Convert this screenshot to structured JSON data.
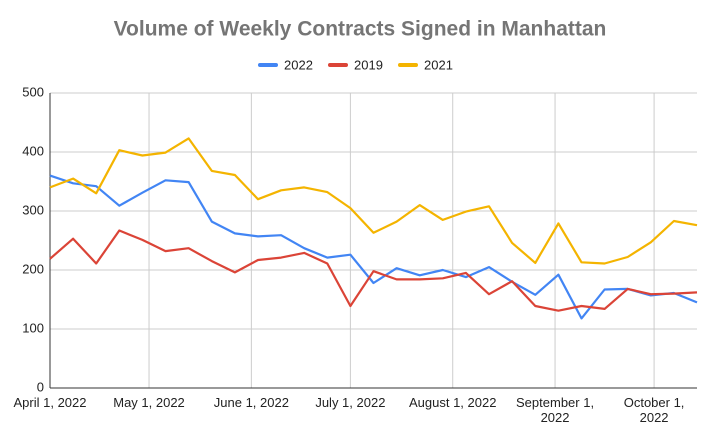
{
  "chart_data": {
    "type": "line",
    "title": "Volume of Weekly Contracts Signed in Manhattan",
    "x": [
      "2022-04-01",
      "2022-04-08",
      "2022-04-15",
      "2022-04-22",
      "2022-04-29",
      "2022-05-06",
      "2022-05-13",
      "2022-05-20",
      "2022-05-27",
      "2022-06-03",
      "2022-06-10",
      "2022-06-17",
      "2022-06-24",
      "2022-07-01",
      "2022-07-08",
      "2022-07-15",
      "2022-07-22",
      "2022-07-29",
      "2022-08-05",
      "2022-08-12",
      "2022-08-19",
      "2022-08-26",
      "2022-09-02",
      "2022-09-09",
      "2022-09-16",
      "2022-09-23",
      "2022-09-30",
      "2022-10-07",
      "2022-10-14"
    ],
    "series": [
      {
        "name": "2022",
        "color": "#4285f4",
        "values": [
          360,
          347,
          342,
          309,
          331,
          352,
          349,
          282,
          262,
          257,
          259,
          237,
          221,
          226,
          178,
          203,
          191,
          200,
          188,
          205,
          180,
          158,
          192,
          118,
          167,
          168,
          157,
          161,
          145
        ]
      },
      {
        "name": "2019",
        "color": "#db4437",
        "values": [
          219,
          253,
          211,
          267,
          251,
          232,
          237,
          215,
          196,
          217,
          221,
          229,
          211,
          139,
          198,
          184,
          184,
          186,
          195,
          159,
          181,
          139,
          131,
          139,
          134,
          168,
          159,
          160,
          162
        ]
      },
      {
        "name": "2021",
        "color": "#f4b400",
        "values": [
          340,
          355,
          330,
          403,
          394,
          399,
          423,
          368,
          361,
          320,
          335,
          340,
          332,
          305,
          263,
          282,
          310,
          285,
          299,
          308,
          246,
          212,
          279,
          213,
          211,
          222,
          247,
          283,
          276
        ]
      }
    ],
    "xlim": [
      "2022-04-01",
      "2022-10-14"
    ],
    "xticks": [
      {
        "value": "2022-04-01",
        "label": "April 1, 2022"
      },
      {
        "value": "2022-05-01",
        "label": "May 1, 2022"
      },
      {
        "value": "2022-06-01",
        "label": "June 1, 2022"
      },
      {
        "value": "2022-07-01",
        "label": "July 1, 2022"
      },
      {
        "value": "2022-08-01",
        "label": "August 1, 2022"
      },
      {
        "value": "2022-09-01",
        "label": "September 1, 2022"
      },
      {
        "value": "2022-10-01",
        "label": "October 1, 2022"
      }
    ],
    "ylim": [
      0,
      500
    ],
    "yticks": [
      0,
      100,
      200,
      300,
      400,
      500
    ],
    "grid": true,
    "legend": "top"
  }
}
